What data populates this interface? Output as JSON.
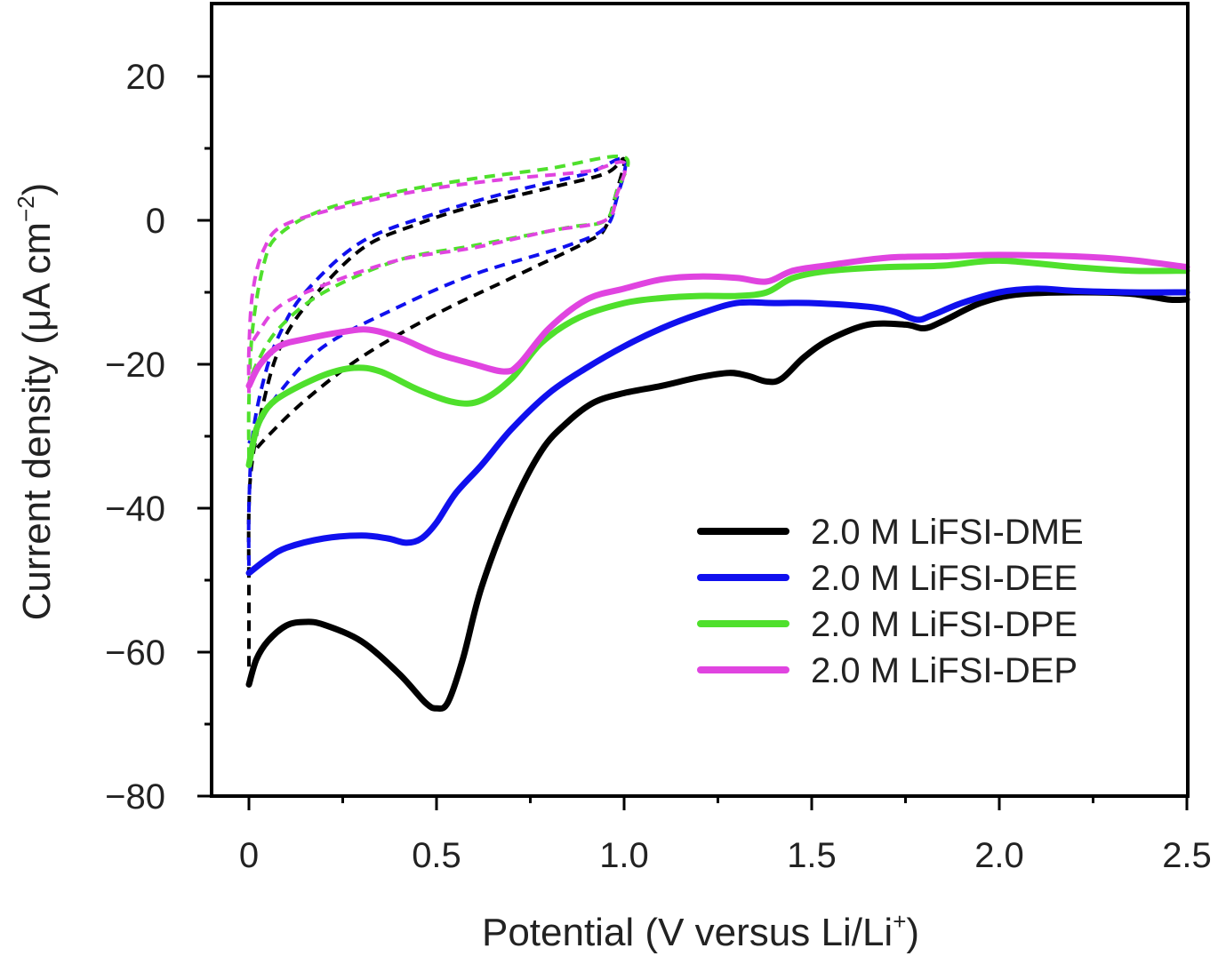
{
  "chart_data": {
    "type": "line",
    "xlabel": {
      "main": "Potential (V versus Li/Li",
      "sup": "+",
      "end": ")"
    },
    "ylabel": {
      "main": "Current density (μA cm",
      "sup": "−2",
      "end": ")"
    },
    "xlim": [
      -0.1,
      2.5
    ],
    "ylim": [
      -80,
      30
    ],
    "xticks": [
      {
        "value": 0,
        "label": "0"
      },
      {
        "value": 0.5,
        "label": "0.5"
      },
      {
        "value": 1.0,
        "label": "1.0"
      },
      {
        "value": 1.5,
        "label": "1.5"
      },
      {
        "value": 2.0,
        "label": "2.0"
      },
      {
        "value": 2.5,
        "label": "2.5"
      }
    ],
    "yticks": [
      {
        "value": 20,
        "label": "20"
      },
      {
        "value": 0,
        "label": "0"
      },
      {
        "value": -20,
        "label": "−20"
      },
      {
        "value": -40,
        "label": "−40"
      },
      {
        "value": -60,
        "label": "−60"
      },
      {
        "value": -80,
        "label": "−80"
      }
    ],
    "grid": false,
    "legend_position": "bottom-right",
    "series": [
      {
        "name": "2.0 M LiFSI-DME",
        "color": "#000000",
        "first_scan": [
          [
            0.0,
            -64.5
          ],
          [
            0.02,
            -61
          ],
          [
            0.05,
            -58.5
          ],
          [
            0.1,
            -56.3
          ],
          [
            0.15,
            -55.8
          ],
          [
            0.2,
            -56.2
          ],
          [
            0.3,
            -58.5
          ],
          [
            0.4,
            -63
          ],
          [
            0.47,
            -67
          ],
          [
            0.5,
            -67.8
          ],
          [
            0.53,
            -67
          ],
          [
            0.57,
            -61
          ],
          [
            0.62,
            -51
          ],
          [
            0.7,
            -40
          ],
          [
            0.78,
            -32
          ],
          [
            0.85,
            -28
          ],
          [
            0.92,
            -25.3
          ],
          [
            1.0,
            -24
          ],
          [
            1.1,
            -23
          ],
          [
            1.2,
            -21.8
          ],
          [
            1.28,
            -21.2
          ],
          [
            1.33,
            -21.6
          ],
          [
            1.38,
            -22.4
          ],
          [
            1.42,
            -22
          ],
          [
            1.48,
            -19
          ],
          [
            1.55,
            -16.5
          ],
          [
            1.65,
            -14.5
          ],
          [
            1.75,
            -14.5
          ],
          [
            1.8,
            -15
          ],
          [
            1.85,
            -14
          ],
          [
            1.95,
            -11.5
          ],
          [
            2.05,
            -10.3
          ],
          [
            2.2,
            -10
          ],
          [
            2.35,
            -10.2
          ],
          [
            2.45,
            -11
          ],
          [
            2.5,
            -11
          ]
        ],
        "loop": [
          [
            0.0,
            -62
          ],
          [
            0.0,
            -52
          ],
          [
            0.0,
            -40
          ],
          [
            0.01,
            -33
          ],
          [
            0.04,
            -25
          ],
          [
            0.08,
            -18
          ],
          [
            0.15,
            -12
          ],
          [
            0.3,
            -4
          ],
          [
            0.45,
            -0.5
          ],
          [
            0.6,
            2
          ],
          [
            0.8,
            4.5
          ],
          [
            0.95,
            6.5
          ],
          [
            1.0,
            8.5
          ],
          [
            0.98,
            4
          ],
          [
            0.95,
            -1
          ],
          [
            0.9,
            -3
          ],
          [
            0.7,
            -8
          ],
          [
            0.5,
            -13
          ],
          [
            0.3,
            -19
          ],
          [
            0.15,
            -25
          ],
          [
            0.05,
            -30
          ],
          [
            0.0,
            -33
          ]
        ]
      },
      {
        "name": "2.0 M LiFSI-DEE",
        "color": "#1010ee",
        "first_scan": [
          [
            0.0,
            -49
          ],
          [
            0.05,
            -47
          ],
          [
            0.1,
            -45.5
          ],
          [
            0.2,
            -44.2
          ],
          [
            0.3,
            -43.8
          ],
          [
            0.37,
            -44.2
          ],
          [
            0.42,
            -44.8
          ],
          [
            0.46,
            -44.2
          ],
          [
            0.5,
            -42
          ],
          [
            0.55,
            -38
          ],
          [
            0.62,
            -34
          ],
          [
            0.7,
            -29
          ],
          [
            0.8,
            -24
          ],
          [
            0.9,
            -20.5
          ],
          [
            1.0,
            -17.5
          ],
          [
            1.1,
            -15
          ],
          [
            1.2,
            -13
          ],
          [
            1.3,
            -11.5
          ],
          [
            1.4,
            -11.5
          ],
          [
            1.5,
            -11.5
          ],
          [
            1.65,
            -12
          ],
          [
            1.72,
            -12.7
          ],
          [
            1.78,
            -13.8
          ],
          [
            1.82,
            -13.2
          ],
          [
            1.9,
            -11.5
          ],
          [
            2.0,
            -10
          ],
          [
            2.1,
            -9.5
          ],
          [
            2.2,
            -9.8
          ],
          [
            2.35,
            -10
          ],
          [
            2.5,
            -10
          ]
        ],
        "loop": [
          [
            0.0,
            -48
          ],
          [
            0.0,
            -40
          ],
          [
            0.01,
            -30
          ],
          [
            0.04,
            -22
          ],
          [
            0.08,
            -16
          ],
          [
            0.15,
            -10
          ],
          [
            0.3,
            -3
          ],
          [
            0.5,
            1
          ],
          [
            0.7,
            4
          ],
          [
            0.9,
            6.5
          ],
          [
            1.0,
            8.5
          ],
          [
            0.98,
            3
          ],
          [
            0.95,
            -1
          ],
          [
            0.85,
            -3.5
          ],
          [
            0.6,
            -7.5
          ],
          [
            0.4,
            -12
          ],
          [
            0.2,
            -17.5
          ],
          [
            0.08,
            -24
          ],
          [
            0.02,
            -29
          ],
          [
            0.0,
            -31
          ]
        ]
      },
      {
        "name": "2.0 M LiFSI-DPE",
        "color": "#4fe02c",
        "first_scan": [
          [
            0.0,
            -34
          ],
          [
            0.02,
            -29
          ],
          [
            0.05,
            -26
          ],
          [
            0.1,
            -24
          ],
          [
            0.2,
            -21.5
          ],
          [
            0.28,
            -20.5
          ],
          [
            0.35,
            -21
          ],
          [
            0.45,
            -23.5
          ],
          [
            0.55,
            -25.3
          ],
          [
            0.62,
            -25
          ],
          [
            0.7,
            -22
          ],
          [
            0.78,
            -17
          ],
          [
            0.88,
            -13.5
          ],
          [
            1.0,
            -11.5
          ],
          [
            1.1,
            -10.8
          ],
          [
            1.2,
            -10.5
          ],
          [
            1.3,
            -10.5
          ],
          [
            1.38,
            -10
          ],
          [
            1.45,
            -8
          ],
          [
            1.55,
            -7
          ],
          [
            1.7,
            -6.5
          ],
          [
            1.85,
            -6.3
          ],
          [
            2.0,
            -5.6
          ],
          [
            2.2,
            -6.5
          ],
          [
            2.35,
            -7
          ],
          [
            2.5,
            -7
          ]
        ],
        "loop": [
          [
            0.0,
            -33
          ],
          [
            0.0,
            -25
          ],
          [
            0.01,
            -15
          ],
          [
            0.04,
            -6
          ],
          [
            0.08,
            -2
          ],
          [
            0.2,
            1.5
          ],
          [
            0.4,
            4
          ],
          [
            0.6,
            5.8
          ],
          [
            0.8,
            7.2
          ],
          [
            1.0,
            8.8
          ],
          [
            0.98,
            4
          ],
          [
            0.95,
            0
          ],
          [
            0.85,
            -1
          ],
          [
            0.6,
            -3.5
          ],
          [
            0.4,
            -5.5
          ],
          [
            0.2,
            -10
          ],
          [
            0.08,
            -15
          ],
          [
            0.02,
            -20
          ],
          [
            0.0,
            -23
          ]
        ]
      },
      {
        "name": "2.0 M LiFSI-DEP",
        "color": "#e044e0",
        "first_scan": [
          [
            0.0,
            -23
          ],
          [
            0.03,
            -20
          ],
          [
            0.08,
            -17.5
          ],
          [
            0.15,
            -16.5
          ],
          [
            0.25,
            -15.5
          ],
          [
            0.32,
            -15.2
          ],
          [
            0.4,
            -16.3
          ],
          [
            0.5,
            -18.5
          ],
          [
            0.6,
            -20
          ],
          [
            0.68,
            -21
          ],
          [
            0.72,
            -20
          ],
          [
            0.8,
            -15
          ],
          [
            0.9,
            -11
          ],
          [
            1.0,
            -9.5
          ],
          [
            1.1,
            -8.2
          ],
          [
            1.2,
            -7.8
          ],
          [
            1.3,
            -8
          ],
          [
            1.38,
            -8.5
          ],
          [
            1.45,
            -7
          ],
          [
            1.55,
            -6.2
          ],
          [
            1.7,
            -5.2
          ],
          [
            1.85,
            -5
          ],
          [
            2.0,
            -4.8
          ],
          [
            2.2,
            -5
          ],
          [
            2.35,
            -5.5
          ],
          [
            2.5,
            -6.5
          ]
        ],
        "loop": [
          [
            0.0,
            -24
          ],
          [
            0.0,
            -18
          ],
          [
            0.01,
            -10
          ],
          [
            0.04,
            -4
          ],
          [
            0.1,
            -0.5
          ],
          [
            0.3,
            2.5
          ],
          [
            0.5,
            4.5
          ],
          [
            0.7,
            5.8
          ],
          [
            0.9,
            6.8
          ],
          [
            1.0,
            8
          ],
          [
            0.98,
            3.5
          ],
          [
            0.95,
            0
          ],
          [
            0.8,
            -1.5
          ],
          [
            0.6,
            -3.8
          ],
          [
            0.4,
            -5.5
          ],
          [
            0.2,
            -9
          ],
          [
            0.08,
            -12
          ],
          [
            0.02,
            -16
          ],
          [
            0.0,
            -18
          ]
        ]
      }
    ]
  }
}
